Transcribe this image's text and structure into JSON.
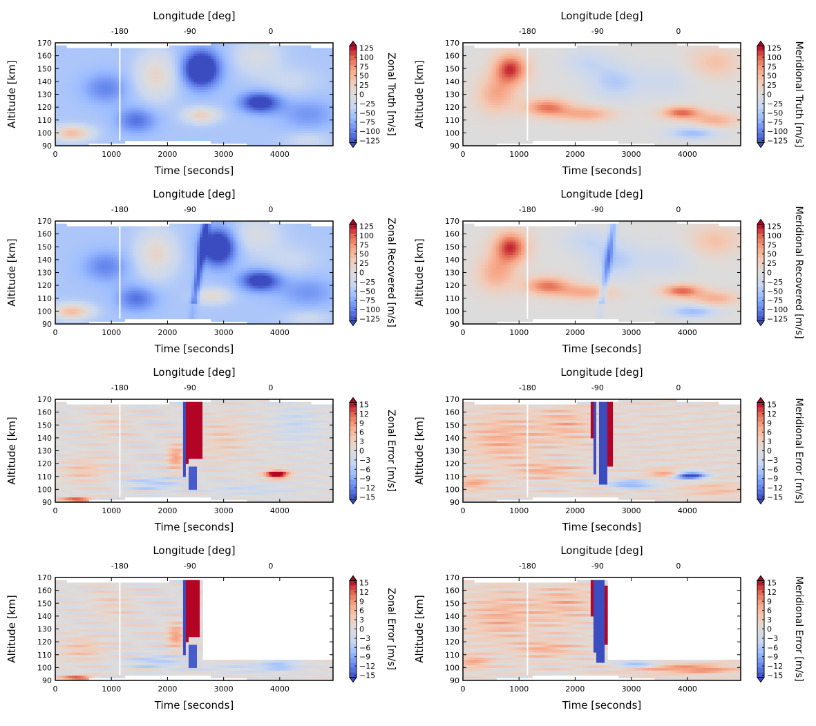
{
  "colors": {
    "cmap_coolwarm": [
      "#3b4cc0",
      "#6788ee",
      "#9abbff",
      "#c9d7f0",
      "#dddcdc",
      "#f2cbb7",
      "#f7a889",
      "#e26952",
      "#b40426"
    ],
    "frame": "#000000",
    "gap": "#ffffff"
  },
  "chart_data": [
    {
      "name": "zonal-truth",
      "type": "heatmap",
      "xlabel": "Time [seconds]",
      "ylabel": "Altitude [km]",
      "top_xlabel": "Longitude [deg]",
      "xlim": [
        0,
        4950
      ],
      "ylim": [
        90,
        170
      ],
      "xticks": [
        "0",
        "1000",
        "2000",
        "3000",
        "4000"
      ],
      "xtick_values": [
        0,
        1000,
        2000,
        3000,
        4000
      ],
      "yticks": [
        "90",
        "100",
        "110",
        "120",
        "130",
        "140",
        "150",
        "160",
        "170"
      ],
      "top_ticks": [
        "-180",
        "-90",
        "0"
      ],
      "top_tick_times": [
        1150,
        2400,
        3840
      ],
      "colorbar_label": "Zonal Truth [m/s]",
      "colorbar_ticks": [
        "125",
        "100",
        "75",
        "50",
        "25",
        "0",
        "−25",
        "−50",
        "−75",
        "−100",
        "−125"
      ],
      "vmin": -125,
      "vmax": 125,
      "blobs": [
        [
          300,
          100,
          350,
          6,
          95
        ],
        [
          1450,
          110,
          350,
          10,
          -55
        ],
        [
          1800,
          145,
          350,
          18,
          65
        ],
        [
          2600,
          150,
          320,
          14,
          -130
        ],
        [
          2600,
          114,
          300,
          6,
          75
        ],
        [
          3650,
          124,
          350,
          8,
          -95
        ],
        [
          3600,
          160,
          400,
          14,
          40
        ],
        [
          4500,
          115,
          500,
          12,
          -35
        ],
        [
          4500,
          95,
          400,
          6,
          25
        ],
        [
          900,
          135,
          400,
          12,
          -45
        ],
        [
          4200,
          140,
          500,
          12,
          20
        ]
      ],
      "background": -50,
      "ridge": null,
      "mask_after": null
    },
    {
      "name": "meridional-truth",
      "type": "heatmap",
      "xlabel": "Time [seconds]",
      "ylabel": "Altitude [km]",
      "top_xlabel": "Longitude [deg]",
      "xlim": [
        0,
        4950
      ],
      "ylim": [
        90,
        170
      ],
      "xticks": [
        "0",
        "1000",
        "2000",
        "3000",
        "4000"
      ],
      "xtick_values": [
        0,
        1000,
        2000,
        3000,
        4000
      ],
      "yticks": [
        "90",
        "100",
        "110",
        "120",
        "130",
        "140",
        "150",
        "160",
        "170"
      ],
      "top_ticks": [
        "-180",
        "-90",
        "0"
      ],
      "top_tick_times": [
        1150,
        2400,
        3840
      ],
      "colorbar_label": "Meridional Truth [m/s]",
      "colorbar_ticks": [
        "125",
        "100",
        "75",
        "50",
        "25",
        "0",
        "−25",
        "−50",
        "−75",
        "−100",
        "−125"
      ],
      "vmin": -125,
      "vmax": 125,
      "blobs": [
        [
          850,
          150,
          300,
          12,
          110
        ],
        [
          600,
          130,
          350,
          14,
          60
        ],
        [
          1500,
          120,
          400,
          7,
          85
        ],
        [
          2200,
          115,
          500,
          6,
          60
        ],
        [
          3900,
          116,
          350,
          5,
          95
        ],
        [
          4500,
          110,
          400,
          6,
          55
        ],
        [
          2700,
          140,
          450,
          14,
          -45
        ],
        [
          2200,
          155,
          400,
          10,
          -30
        ],
        [
          4100,
          100,
          450,
          5,
          -60
        ],
        [
          4500,
          155,
          450,
          12,
          40
        ],
        [
          3600,
          140,
          500,
          12,
          -25
        ]
      ],
      "background": 0,
      "ridge": null,
      "mask_after": null
    },
    {
      "name": "zonal-recovered",
      "type": "heatmap",
      "xlabel": "Time [seconds]",
      "ylabel": "Altitude [km]",
      "top_xlabel": "Longitude [deg]",
      "xlim": [
        0,
        4950
      ],
      "ylim": [
        90,
        170
      ],
      "xticks": [
        "0",
        "1000",
        "2000",
        "3000",
        "4000"
      ],
      "xtick_values": [
        0,
        1000,
        2000,
        3000,
        4000
      ],
      "yticks": [
        "90",
        "100",
        "110",
        "120",
        "130",
        "140",
        "150",
        "160",
        "170"
      ],
      "top_ticks": [
        "-180",
        "-90",
        "0"
      ],
      "top_tick_times": [
        1150,
        2400,
        3840
      ],
      "colorbar_label": "Zonal Recovered [m/s]",
      "colorbar_ticks": [
        "125",
        "100",
        "75",
        "50",
        "25",
        "0",
        "−25",
        "−50",
        "−75",
        "−100",
        "−125"
      ],
      "vmin": -125,
      "vmax": 125,
      "blobs": [
        [
          300,
          100,
          350,
          6,
          95
        ],
        [
          1450,
          110,
          350,
          10,
          -55
        ],
        [
          1800,
          145,
          350,
          18,
          65
        ],
        [
          2900,
          150,
          300,
          14,
          -120
        ],
        [
          2800,
          112,
          300,
          6,
          60
        ],
        [
          3650,
          124,
          350,
          8,
          -95
        ],
        [
          3600,
          160,
          400,
          14,
          40
        ],
        [
          4500,
          115,
          500,
          12,
          -35
        ],
        [
          4500,
          95,
          400,
          6,
          25
        ],
        [
          900,
          135,
          400,
          12,
          -45
        ],
        [
          4200,
          140,
          500,
          12,
          20
        ]
      ],
      "background": -50,
      "ridge": [
        2450,
        -60
      ],
      "mask_after": null
    },
    {
      "name": "meridional-recovered",
      "type": "heatmap",
      "xlabel": "Time [seconds]",
      "ylabel": "Altitude [km]",
      "top_xlabel": "Longitude [deg]",
      "xlim": [
        0,
        4950
      ],
      "ylim": [
        90,
        170
      ],
      "xticks": [
        "0",
        "1000",
        "2000",
        "3000",
        "4000"
      ],
      "xtick_values": [
        0,
        1000,
        2000,
        3000,
        4000
      ],
      "yticks": [
        "90",
        "100",
        "110",
        "120",
        "130",
        "140",
        "150",
        "160",
        "170"
      ],
      "top_ticks": [
        "-180",
        "-90",
        "0"
      ],
      "top_tick_times": [
        1150,
        2400,
        3840
      ],
      "colorbar_label": "Meridional Recovered [m/s]",
      "colorbar_ticks": [
        "125",
        "100",
        "75",
        "50",
        "25",
        "0",
        "−25",
        "−50",
        "−75",
        "−100",
        "−125"
      ],
      "vmin": -125,
      "vmax": 125,
      "blobs": [
        [
          850,
          150,
          300,
          12,
          110
        ],
        [
          600,
          130,
          350,
          14,
          60
        ],
        [
          1500,
          120,
          400,
          7,
          85
        ],
        [
          2200,
          115,
          500,
          6,
          60
        ],
        [
          3900,
          116,
          350,
          5,
          95
        ],
        [
          4500,
          110,
          400,
          6,
          55
        ],
        [
          2700,
          140,
          450,
          14,
          -45
        ],
        [
          2200,
          155,
          400,
          10,
          -30
        ],
        [
          4100,
          100,
          450,
          5,
          -60
        ],
        [
          4500,
          155,
          450,
          12,
          40
        ],
        [
          3600,
          140,
          500,
          12,
          -25
        ]
      ],
      "background": 0,
      "ridge": [
        2450,
        -60
      ],
      "mask_after": null
    },
    {
      "name": "zonal-error-1",
      "type": "heatmap",
      "xlabel": "Time [seconds]",
      "ylabel": "Altitude [km]",
      "top_xlabel": "Longitude [deg]",
      "xlim": [
        0,
        4950
      ],
      "ylim": [
        90,
        170
      ],
      "xticks": [
        "0",
        "1000",
        "2000",
        "3000",
        "4000"
      ],
      "xtick_values": [
        0,
        1000,
        2000,
        3000,
        4000
      ],
      "yticks": [
        "90",
        "100",
        "110",
        "120",
        "130",
        "140",
        "150",
        "160",
        "170"
      ],
      "top_ticks": [
        "-180",
        "-90",
        "0"
      ],
      "top_tick_times": [
        1150,
        2400,
        3840
      ],
      "colorbar_label": "Zonal Error [m/s]",
      "colorbar_ticks": [
        "15",
        "12",
        "9",
        "6",
        "3",
        "0",
        "−3",
        "−6",
        "−9",
        "−12",
        "−15"
      ],
      "vmin": -15,
      "vmax": 15,
      "blobs": [
        [
          500,
          115,
          400,
          10,
          4
        ],
        [
          1000,
          150,
          400,
          15,
          2
        ],
        [
          1800,
          105,
          500,
          5,
          -5
        ],
        [
          2150,
          125,
          150,
          10,
          8
        ],
        [
          3000,
          140,
          450,
          18,
          3
        ],
        [
          3950,
          112,
          200,
          3,
          20
        ],
        [
          400,
          92,
          300,
          2,
          14
        ],
        [
          3500,
          100,
          800,
          4,
          -3
        ],
        [
          4300,
          150,
          400,
          15,
          -3
        ]
      ],
      "background": 0,
      "stripes": true,
      "strips": [
        [
          2280,
          2330,
          110,
          170,
          -18
        ],
        [
          2330,
          2380,
          120,
          168,
          18
        ],
        [
          2380,
          2620,
          125,
          168,
          25
        ],
        [
          2400,
          2530,
          100,
          118,
          -14
        ]
      ],
      "mask_after": null
    },
    {
      "name": "meridional-error-1",
      "type": "heatmap",
      "xlabel": "Time [seconds]",
      "ylabel": "Altitude [km]",
      "top_xlabel": "Longitude [deg]",
      "xlim": [
        0,
        4950
      ],
      "ylim": [
        90,
        170
      ],
      "xticks": [
        "0",
        "1000",
        "2000",
        "3000",
        "4000"
      ],
      "xtick_values": [
        0,
        1000,
        2000,
        3000,
        4000
      ],
      "yticks": [
        "90",
        "100",
        "110",
        "120",
        "130",
        "140",
        "150",
        "160",
        "170"
      ],
      "top_ticks": [
        "-180",
        "-90",
        "0"
      ],
      "top_tick_times": [
        1150,
        2400,
        3840
      ],
      "colorbar_label": "Meridional Error [m/s]",
      "colorbar_ticks": [
        "15",
        "12",
        "9",
        "6",
        "3",
        "0",
        "−3",
        "−6",
        "−9",
        "−12",
        "−15"
      ],
      "vmin": -15,
      "vmax": 15,
      "blobs": [
        [
          700,
          140,
          600,
          18,
          5
        ],
        [
          1800,
          150,
          500,
          15,
          4
        ],
        [
          3600,
          113,
          300,
          3,
          7
        ],
        [
          4050,
          111,
          280,
          3,
          -18
        ],
        [
          3000,
          104,
          450,
          3,
          -10
        ],
        [
          200,
          105,
          300,
          5,
          6
        ],
        [
          1500,
          115,
          500,
          6,
          5
        ],
        [
          4500,
          100,
          500,
          5,
          4
        ]
      ],
      "background": 1,
      "stripes": true,
      "strips": [
        [
          2260,
          2310,
          140,
          168,
          18
        ],
        [
          2320,
          2360,
          112,
          168,
          -18
        ],
        [
          2450,
          2560,
          104,
          168,
          -22
        ],
        [
          2560,
          2660,
          118,
          168,
          22
        ]
      ],
      "mask_after": null
    },
    {
      "name": "zonal-error-2",
      "type": "heatmap",
      "xlabel": "Time [seconds]",
      "ylabel": "Altitude [km]",
      "top_xlabel": "Longitude [deg]",
      "xlim": [
        0,
        4950
      ],
      "ylim": [
        90,
        170
      ],
      "xticks": [
        "0",
        "1000",
        "2000",
        "3000",
        "4000"
      ],
      "xtick_values": [
        0,
        1000,
        2000,
        3000,
        4000
      ],
      "yticks": [
        "90",
        "100",
        "110",
        "120",
        "130",
        "140",
        "150",
        "160",
        "170"
      ],
      "top_ticks": [
        "-180",
        "-90",
        "0"
      ],
      "top_tick_times": [
        1150,
        2400,
        3840
      ],
      "colorbar_label": "Zonal Error [m/s]",
      "colorbar_ticks": [
        "15",
        "12",
        "9",
        "6",
        "3",
        "0",
        "−3",
        "−6",
        "−9",
        "−12",
        "−15"
      ],
      "vmin": -15,
      "vmax": 15,
      "blobs": [
        [
          500,
          115,
          400,
          10,
          4
        ],
        [
          1000,
          150,
          400,
          15,
          2
        ],
        [
          1800,
          105,
          500,
          5,
          -5
        ],
        [
          2150,
          125,
          150,
          10,
          8
        ],
        [
          400,
          92,
          300,
          2,
          14
        ],
        [
          3500,
          100,
          800,
          4,
          -3
        ],
        [
          4000,
          102,
          300,
          3,
          -6
        ]
      ],
      "background": 0,
      "stripes": true,
      "strips": [
        [
          2280,
          2330,
          110,
          170,
          -18
        ],
        [
          2330,
          2380,
          120,
          168,
          18
        ],
        [
          2380,
          2560,
          124,
          168,
          25
        ],
        [
          2400,
          2530,
          100,
          118,
          -14
        ]
      ],
      "mask_after": [
        2600,
        106
      ]
    },
    {
      "name": "meridional-error-2",
      "type": "heatmap",
      "xlabel": "Time [seconds]",
      "ylabel": "Altitude [km]",
      "top_xlabel": "Longitude [deg]",
      "xlim": [
        0,
        4950
      ],
      "ylim": [
        90,
        170
      ],
      "xticks": [
        "0",
        "1000",
        "2000",
        "3000",
        "4000"
      ],
      "xtick_values": [
        0,
        1000,
        2000,
        3000,
        4000
      ],
      "yticks": [
        "90",
        "100",
        "110",
        "120",
        "130",
        "140",
        "150",
        "160",
        "170"
      ],
      "top_ticks": [
        "-180",
        "-90",
        "0"
      ],
      "top_tick_times": [
        1150,
        2400,
        3840
      ],
      "colorbar_label": "Meridional Error [m/s]",
      "colorbar_ticks": [
        "15",
        "12",
        "9",
        "6",
        "3",
        "0",
        "−3",
        "−6",
        "−9",
        "−12",
        "−15"
      ],
      "vmin": -15,
      "vmax": 15,
      "blobs": [
        [
          700,
          140,
          600,
          18,
          5
        ],
        [
          1800,
          150,
          500,
          15,
          4
        ],
        [
          200,
          105,
          300,
          5,
          6
        ],
        [
          1500,
          115,
          500,
          6,
          5
        ],
        [
          3500,
          100,
          800,
          4,
          5
        ],
        [
          4300,
          99,
          600,
          3,
          7
        ],
        [
          3100,
          103,
          400,
          3,
          -10
        ]
      ],
      "background": 1,
      "stripes": true,
      "strips": [
        [
          2260,
          2310,
          140,
          168,
          18
        ],
        [
          2320,
          2360,
          112,
          168,
          -18
        ],
        [
          2400,
          2520,
          104,
          168,
          -22
        ],
        [
          2520,
          2570,
          118,
          164,
          22
        ]
      ],
      "mask_after": [
        2570,
        106
      ]
    }
  ]
}
